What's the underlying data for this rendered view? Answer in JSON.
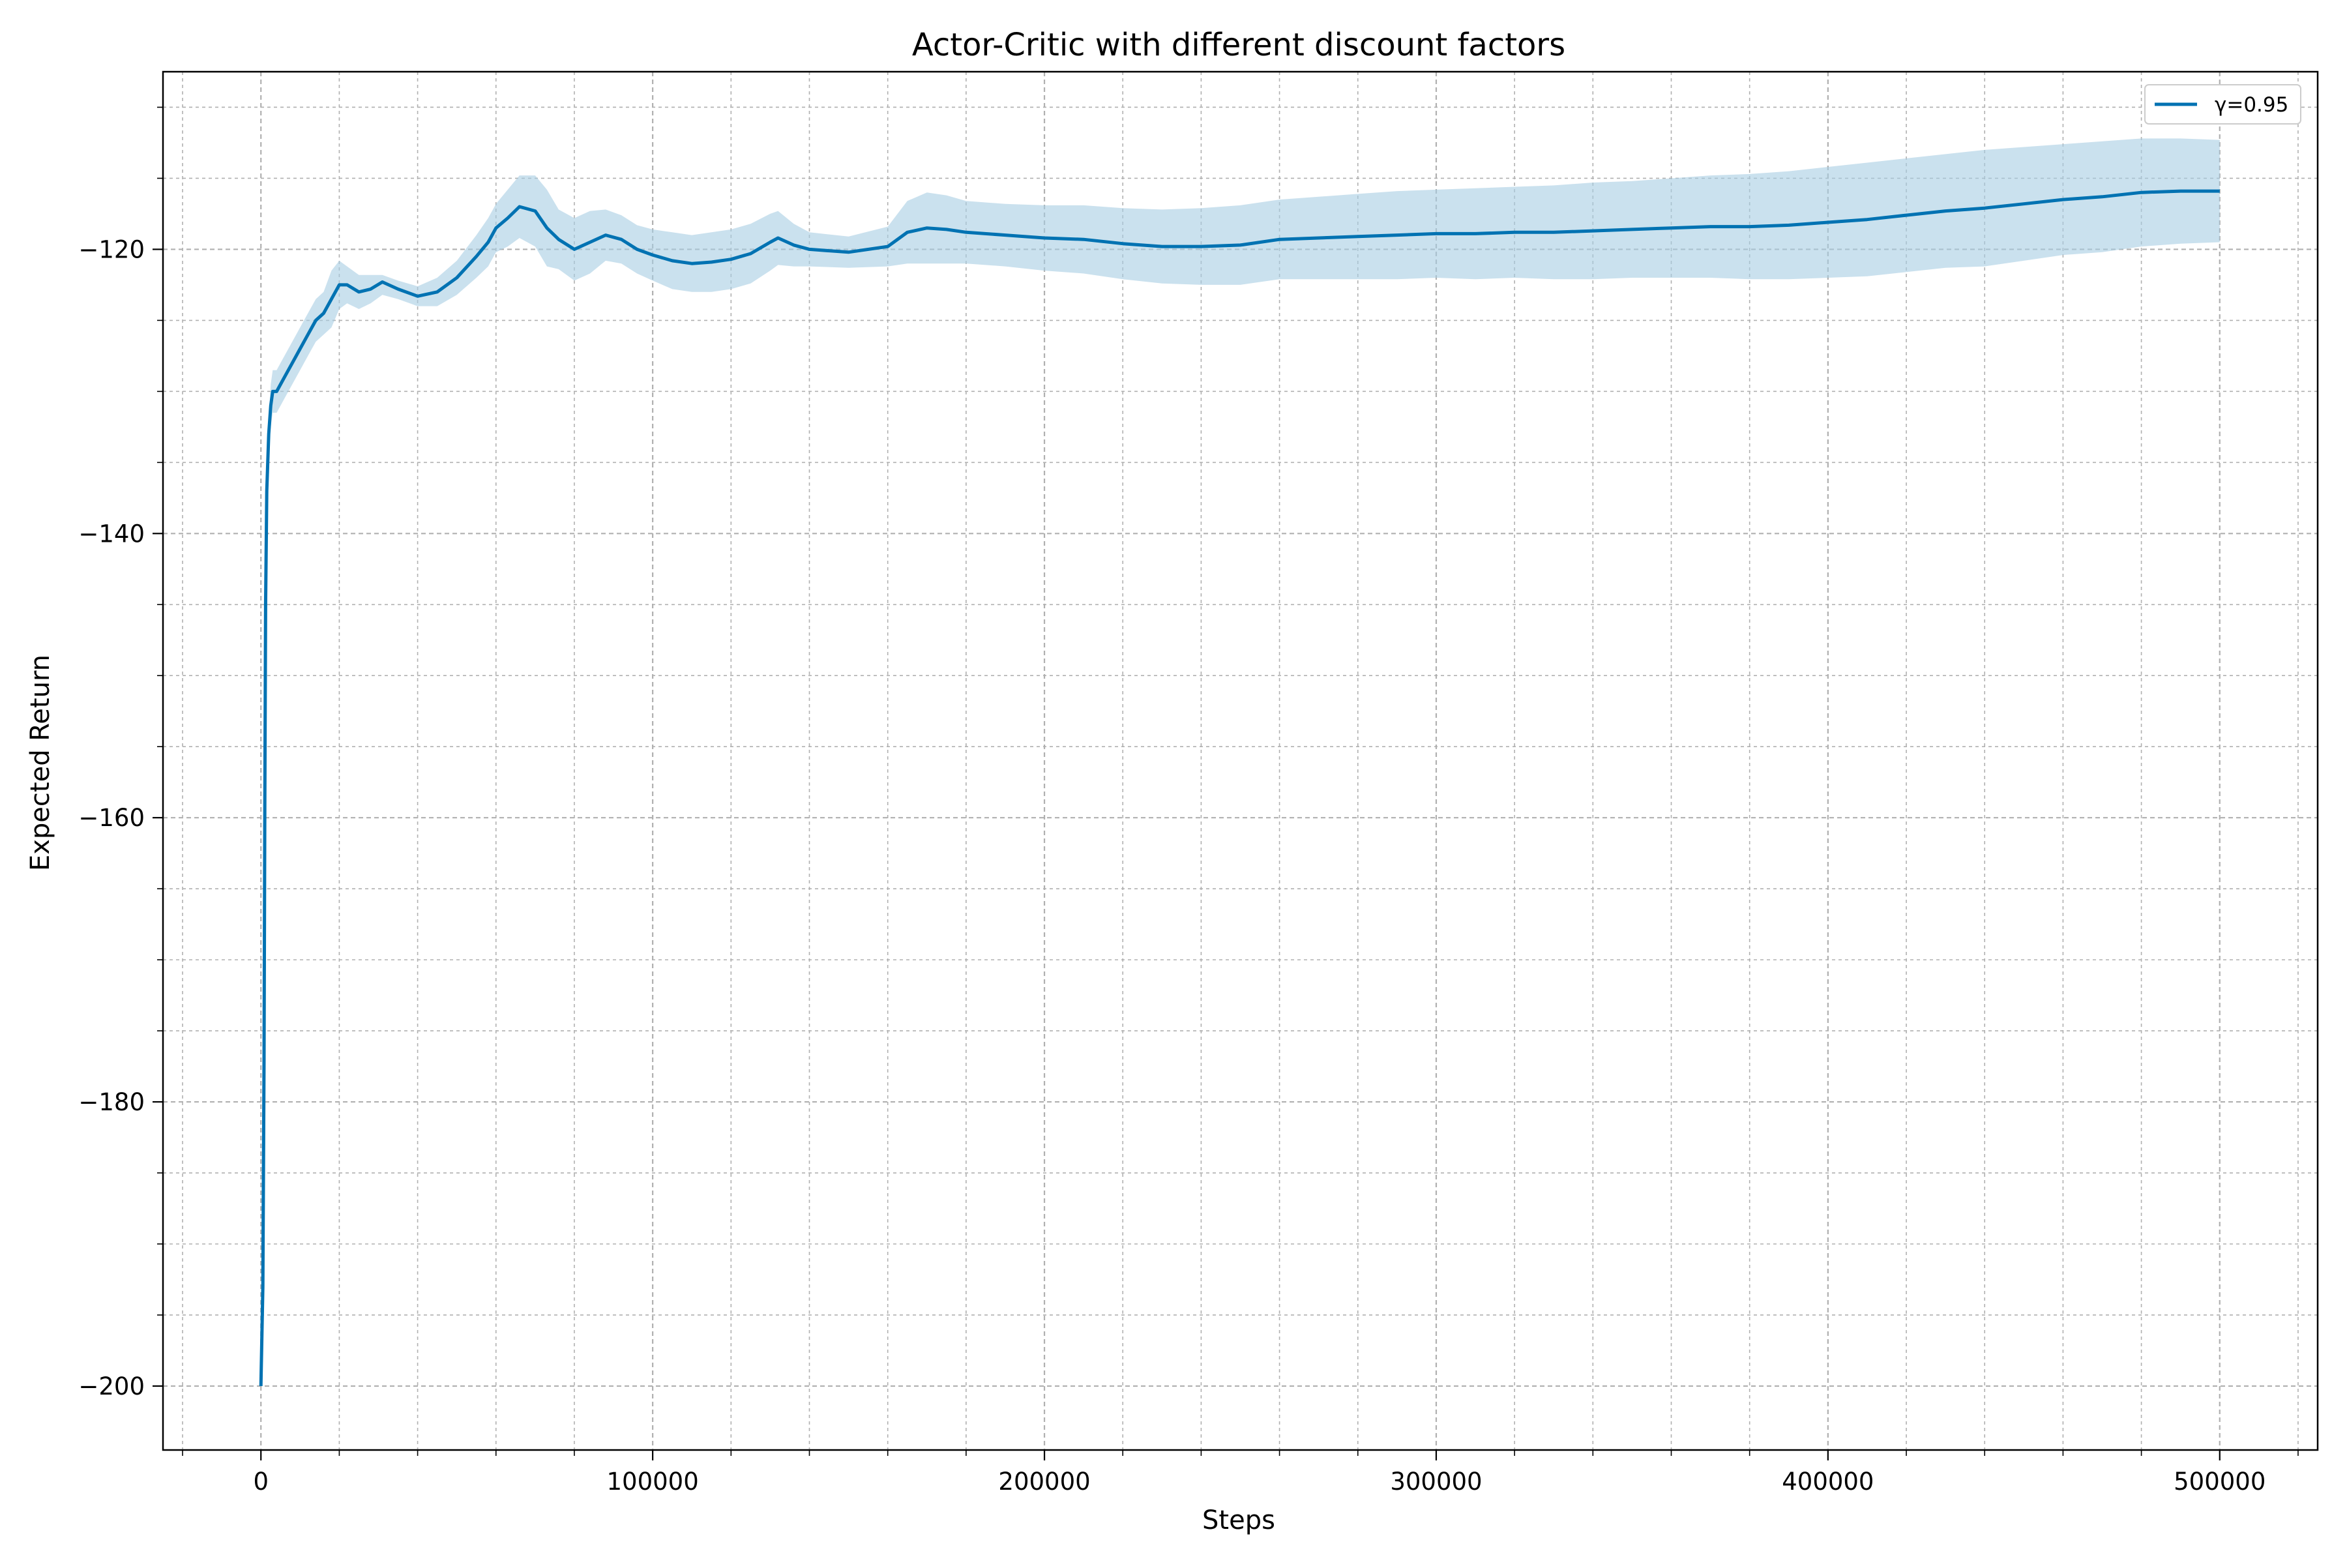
{
  "chart_data": {
    "type": "line",
    "title": "Actor-Critic with different discount factors",
    "xlabel": "Steps",
    "ylabel": "Expected Return",
    "xlim": [
      -25000,
      525000
    ],
    "ylim": [
      -204.5,
      -107.5
    ],
    "xticks": [
      0,
      100000,
      200000,
      300000,
      400000,
      500000
    ],
    "xtick_labels": [
      "0",
      "100000",
      "200000",
      "300000",
      "400000",
      "500000"
    ],
    "xminor_step": 20000,
    "yticks": [
      -200,
      -180,
      -160,
      -140,
      -120
    ],
    "ytick_labels": [
      "−200",
      "−180",
      "−160",
      "−140",
      "−120"
    ],
    "yminor_step": 5,
    "grid": true,
    "legend_position": "top-right",
    "series": [
      {
        "name": "γ=0.95",
        "color": "#0072b2",
        "band_color": "#a6cde3",
        "x": [
          0,
          500,
          800,
          1000,
          1200,
          1500,
          2000,
          2500,
          3000,
          4000,
          5000,
          6000,
          8000,
          10000,
          12000,
          14000,
          16000,
          18000,
          20000,
          22000,
          25000,
          28000,
          31000,
          35000,
          40000,
          45000,
          50000,
          55000,
          58000,
          60000,
          63000,
          66000,
          70000,
          73000,
          76000,
          80000,
          84000,
          88000,
          92000,
          96000,
          100000,
          105000,
          110000,
          115000,
          120000,
          125000,
          130000,
          132000,
          136000,
          140000,
          150000,
          160000,
          165000,
          170000,
          175000,
          180000,
          190000,
          200000,
          210000,
          220000,
          230000,
          240000,
          250000,
          260000,
          270000,
          280000,
          290000,
          300000,
          310000,
          320000,
          330000,
          340000,
          350000,
          360000,
          370000,
          380000,
          390000,
          400000,
          410000,
          420000,
          430000,
          440000,
          450000,
          460000,
          470000,
          480000,
          490000,
          500000
        ],
        "mean": [
          -200,
          -193,
          -177,
          -159,
          -145,
          -137,
          -133,
          -131,
          -130,
          -130,
          -129.5,
          -129,
          -128,
          -127,
          -126,
          -125,
          -124.5,
          -123.5,
          -122.5,
          -122.5,
          -123,
          -122.8,
          -122.3,
          -122.8,
          -123.3,
          -123,
          -122,
          -120.5,
          -119.5,
          -118.5,
          -117.8,
          -117,
          -117.3,
          -118.5,
          -119.3,
          -120,
          -119.5,
          -119,
          -119.3,
          -120,
          -120.4,
          -120.8,
          -121,
          -120.9,
          -120.7,
          -120.3,
          -119.5,
          -119.2,
          -119.7,
          -120,
          -120.2,
          -119.8,
          -118.8,
          -118.5,
          -118.6,
          -118.8,
          -119,
          -119.2,
          -119.3,
          -119.6,
          -119.8,
          -119.8,
          -119.7,
          -119.3,
          -119.2,
          -119.1,
          -119,
          -118.9,
          -118.9,
          -118.8,
          -118.8,
          -118.7,
          -118.6,
          -118.5,
          -118.4,
          -118.4,
          -118.3,
          -118.1,
          -117.9,
          -117.6,
          -117.3,
          -117.1,
          -116.8,
          -116.5,
          -116.3,
          -116,
          -115.9,
          -115.9
        ],
        "upper": [
          -200,
          -192,
          -176,
          -158,
          -144,
          -136,
          -132,
          -129.5,
          -128.5,
          -128.5,
          -128,
          -127.5,
          -126.5,
          -125.5,
          -124.5,
          -123.5,
          -123,
          -121.5,
          -120.8,
          -121.2,
          -121.8,
          -121.8,
          -121.8,
          -122.2,
          -122.6,
          -122,
          -120.8,
          -119,
          -117.8,
          -116.8,
          -115.8,
          -114.8,
          -114.8,
          -115.8,
          -117.2,
          -117.8,
          -117.3,
          -117.2,
          -117.6,
          -118.3,
          -118.6,
          -118.8,
          -119,
          -118.8,
          -118.6,
          -118.2,
          -117.5,
          -117.3,
          -118.2,
          -118.8,
          -119.1,
          -118.4,
          -116.6,
          -116,
          -116.2,
          -116.6,
          -116.8,
          -116.9,
          -116.9,
          -117.1,
          -117.2,
          -117.1,
          -116.9,
          -116.5,
          -116.3,
          -116.1,
          -115.9,
          -115.8,
          -115.7,
          -115.6,
          -115.5,
          -115.3,
          -115.2,
          -115,
          -114.8,
          -114.7,
          -114.5,
          -114.2,
          -113.9,
          -113.6,
          -113.3,
          -113,
          -112.8,
          -112.6,
          -112.4,
          -112.2,
          -112.2,
          -112.3
        ],
        "lower": [
          -200,
          -194,
          -178,
          -160,
          -146,
          -138,
          -134,
          -132.5,
          -131.5,
          -131.5,
          -131,
          -130.5,
          -129.5,
          -128.5,
          -127.5,
          -126.5,
          -126,
          -125.5,
          -124.2,
          -123.8,
          -124.2,
          -123.8,
          -123.2,
          -123.5,
          -124,
          -124,
          -123.2,
          -122,
          -121.2,
          -120.2,
          -119.8,
          -119.2,
          -119.8,
          -121.2,
          -121.4,
          -122.2,
          -121.7,
          -120.8,
          -121,
          -121.7,
          -122.2,
          -122.8,
          -123,
          -123,
          -122.8,
          -122.4,
          -121.5,
          -121.1,
          -121.2,
          -121.2,
          -121.3,
          -121.2,
          -121,
          -121,
          -121,
          -121,
          -121.2,
          -121.5,
          -121.7,
          -122.1,
          -122.4,
          -122.5,
          -122.5,
          -122.1,
          -122.1,
          -122.1,
          -122.1,
          -122,
          -122.1,
          -122,
          -122.1,
          -122.1,
          -122,
          -122,
          -122,
          -122.1,
          -122.1,
          -122,
          -121.9,
          -121.6,
          -121.3,
          -121.2,
          -120.8,
          -120.4,
          -120.2,
          -119.8,
          -119.6,
          -119.5
        ]
      }
    ]
  }
}
